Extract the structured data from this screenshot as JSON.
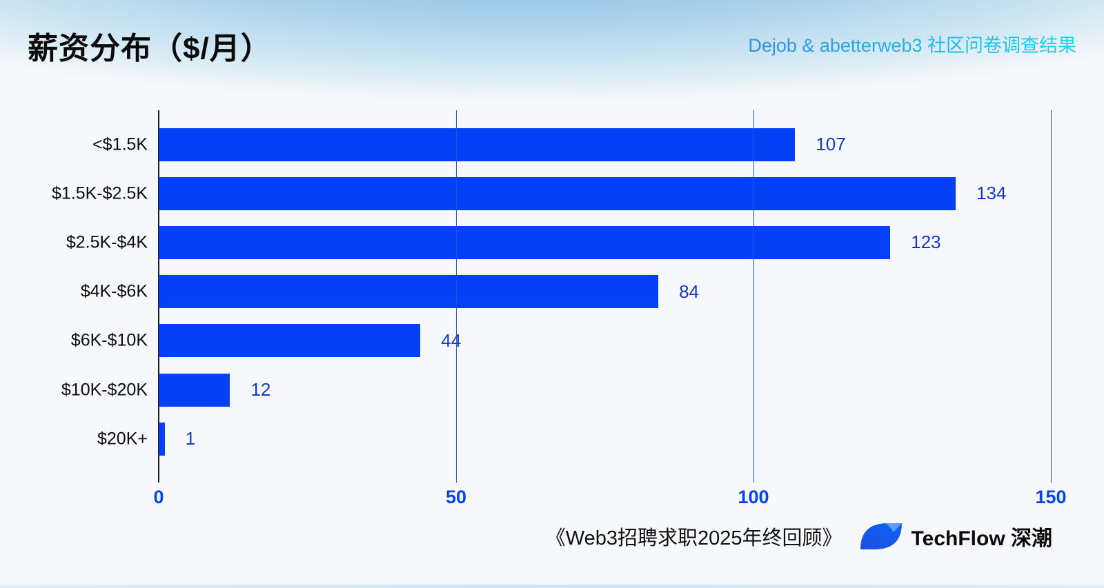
{
  "header": {
    "title": "薪资分布（$/月）",
    "subtitle": "Dejob & abetterweb3 社区问卷调查结果"
  },
  "chart_data": {
    "type": "bar",
    "orientation": "horizontal",
    "title": "薪资分布（$/月）",
    "categories": [
      "<$1.5K",
      "$1.5K-$2.5K",
      "$2.5K-$4K",
      "$4K-$6K",
      "$6K-$10K",
      "$10K-$20K",
      "$20K+"
    ],
    "values": [
      107,
      134,
      123,
      84,
      44,
      12,
      1
    ],
    "xlabel": "",
    "ylabel": "",
    "xlim": [
      0,
      150
    ],
    "xticks": [
      0,
      50,
      100,
      150
    ],
    "grid": true,
    "legend": "none",
    "colors": {
      "bar": "#0540f6",
      "value_label": "#1538cc",
      "tick_label": "#0546eb",
      "gridline": "#2050e0",
      "axis": "#1c1c1c"
    }
  },
  "footer": {
    "source_title": "《Web3招聘求职2025年终回顾》",
    "brand": "TechFlow 深潮"
  },
  "icons": {
    "logo": "techflow-leaf-logo"
  }
}
